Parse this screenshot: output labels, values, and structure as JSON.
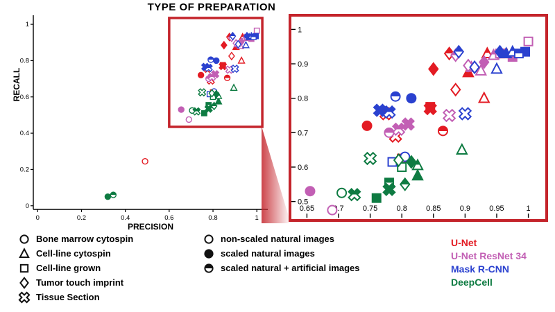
{
  "title": "TYPE OF PREPARATION",
  "accent": {
    "zoom_frame_red": "#c4242b"
  },
  "chart_data": {
    "type": "scatter",
    "title": "TYPE OF PREPARATION",
    "xlabel": "PRECISION",
    "ylabel": "RECALL",
    "main_axes": {
      "xlim": [
        -0.02,
        1.05
      ],
      "ylim": [
        -0.02,
        1.05
      ],
      "xticks": [
        0,
        0.2,
        0.4,
        0.6,
        0.8,
        1
      ],
      "yticks": [
        0,
        0.2,
        0.4,
        0.6,
        0.8,
        1
      ],
      "xtick_labels": [
        "0",
        "0.2",
        "0.4",
        "0.6",
        "0.8",
        "1"
      ],
      "ytick_labels": [
        "0",
        "0.2",
        "0.4",
        "0.6",
        "0.8",
        "1"
      ]
    },
    "zoom_axes": {
      "xlim": [
        0.632,
        1.018
      ],
      "ylim": [
        0.465,
        1.025
      ],
      "xticks": [
        0.65,
        0.7,
        0.75,
        0.8,
        0.85,
        0.9,
        0.95,
        1
      ],
      "yticks": [
        0.5,
        0.6,
        0.7,
        0.8,
        0.9,
        1
      ],
      "xtick_labels": [
        "0.65",
        "0.7",
        "0.75",
        "0.8",
        "0.85",
        "0.9",
        "0.95",
        "1"
      ],
      "ytick_labels": [
        "0.5",
        "0.6",
        "0.7",
        "0.8",
        "0.9",
        "1"
      ]
    },
    "zoom_region": {
      "x0": 0.6,
      "x1": 1.025,
      "y0": 0.435,
      "y1": 1.035
    },
    "point_format": [
      "shape",
      "fill",
      "precision",
      "recall"
    ],
    "series": [
      {
        "name": "U-Net",
        "color": "#e31b23",
        "points": [
          [
            "circle",
            "open",
            0.49,
            0.245
          ],
          [
            "circle",
            "filled",
            0.745,
            0.72
          ],
          [
            "circle",
            "half",
            0.865,
            0.705
          ],
          [
            "triangle",
            "open",
            0.93,
            0.8
          ],
          [
            "triangle",
            "filled",
            0.905,
            0.875
          ],
          [
            "triangle",
            "half",
            0.935,
            0.93
          ],
          [
            "square",
            "open",
            0.8,
            0.625
          ],
          [
            "square",
            "filled",
            0.96,
            0.93
          ],
          [
            "square",
            "half",
            0.845,
            0.775
          ],
          [
            "diamond",
            "open",
            0.885,
            0.825
          ],
          [
            "diamond",
            "filled",
            0.85,
            0.885
          ],
          [
            "diamond",
            "half",
            0.875,
            0.93
          ],
          [
            "tissue",
            "open",
            0.79,
            0.69
          ],
          [
            "tissue",
            "filled",
            0.845,
            0.77
          ],
          [
            "tissue",
            "half",
            0.775,
            0.755
          ]
        ]
      },
      {
        "name": "U-Net ResNet 34",
        "color": "#c25fb4",
        "points": [
          [
            "circle",
            "open",
            0.69,
            0.475
          ],
          [
            "circle",
            "filled",
            0.655,
            0.53
          ],
          [
            "circle",
            "half",
            0.78,
            0.7
          ],
          [
            "triangle",
            "open",
            0.925,
            0.88
          ],
          [
            "triangle",
            "filled",
            0.91,
            0.89
          ],
          [
            "triangle",
            "half",
            0.945,
            0.925
          ],
          [
            "square",
            "open",
            1.0,
            0.965
          ],
          [
            "square",
            "filled",
            0.975,
            0.92
          ],
          [
            "square",
            "half",
            0.955,
            0.93
          ],
          [
            "diamond",
            "open",
            0.905,
            0.895
          ],
          [
            "diamond",
            "filled",
            0.93,
            0.905
          ],
          [
            "diamond",
            "half",
            0.885,
            0.925
          ],
          [
            "tissue",
            "open",
            0.875,
            0.75
          ],
          [
            "tissue",
            "filled",
            0.81,
            0.725
          ],
          [
            "tissue",
            "half",
            0.795,
            0.71
          ]
        ]
      },
      {
        "name": "Mask R-CNN",
        "color": "#2a41cf",
        "points": [
          [
            "circle",
            "open",
            0.805,
            0.63
          ],
          [
            "circle",
            "filled",
            0.815,
            0.8
          ],
          [
            "circle",
            "half",
            0.79,
            0.805
          ],
          [
            "triangle",
            "open",
            0.95,
            0.885
          ],
          [
            "triangle",
            "filled",
            0.965,
            0.93
          ],
          [
            "triangle",
            "half",
            0.975,
            0.935
          ],
          [
            "square",
            "open",
            0.785,
            0.615
          ],
          [
            "square",
            "filled",
            0.995,
            0.935
          ],
          [
            "square",
            "half",
            0.985,
            0.93
          ],
          [
            "diamond",
            "open",
            0.915,
            0.89
          ],
          [
            "diamond",
            "filled",
            0.955,
            0.935
          ],
          [
            "diamond",
            "half",
            0.89,
            0.935
          ],
          [
            "tissue",
            "open",
            0.9,
            0.755
          ],
          [
            "tissue",
            "filled",
            0.765,
            0.765
          ],
          [
            "tissue",
            "half",
            0.78,
            0.76
          ]
        ]
      },
      {
        "name": "DeepCell",
        "color": "#0e7b42",
        "points": [
          [
            "circle",
            "open",
            0.705,
            0.525
          ],
          [
            "circle",
            "filled",
            0.32,
            0.05
          ],
          [
            "circle",
            "half",
            0.345,
            0.06
          ],
          [
            "triangle",
            "open",
            0.895,
            0.65
          ],
          [
            "triangle",
            "filled",
            0.825,
            0.575
          ],
          [
            "triangle",
            "half",
            0.825,
            0.605
          ],
          [
            "square",
            "open",
            0.8,
            0.6
          ],
          [
            "square",
            "filled",
            0.76,
            0.51
          ],
          [
            "square",
            "half",
            0.78,
            0.555
          ],
          [
            "diamond",
            "open",
            0.795,
            0.62
          ],
          [
            "diamond",
            "filled",
            0.815,
            0.615
          ],
          [
            "diamond",
            "half",
            0.805,
            0.55
          ],
          [
            "tissue",
            "open",
            0.75,
            0.625
          ],
          [
            "tissue",
            "filled",
            0.78,
            0.535
          ],
          [
            "tissue",
            "half",
            0.725,
            0.52
          ]
        ]
      }
    ]
  },
  "legend": {
    "preparations": [
      {
        "shape": "circle",
        "label": "Bone marrow cytospin"
      },
      {
        "shape": "triangle",
        "label": "Cell-line cytospin"
      },
      {
        "shape": "square",
        "label": "Cell-line grown"
      },
      {
        "shape": "diamond",
        "label": "Tumor touch imprint"
      },
      {
        "shape": "tissue",
        "label": "Tissue Section"
      }
    ],
    "image_types": [
      {
        "fill": "open",
        "label": "non-scaled natural images"
      },
      {
        "fill": "filled",
        "label": "scaled natural images"
      },
      {
        "fill": "half",
        "label": "scaled natural + artificial images"
      }
    ],
    "methods": [
      {
        "label": "U-Net",
        "color": "#e31b23"
      },
      {
        "label": "U-Net ResNet 34",
        "color": "#c25fb4"
      },
      {
        "label": "Mask R-CNN",
        "color": "#2a41cf"
      },
      {
        "label": "DeepCell",
        "color": "#0e7b42"
      }
    ]
  }
}
